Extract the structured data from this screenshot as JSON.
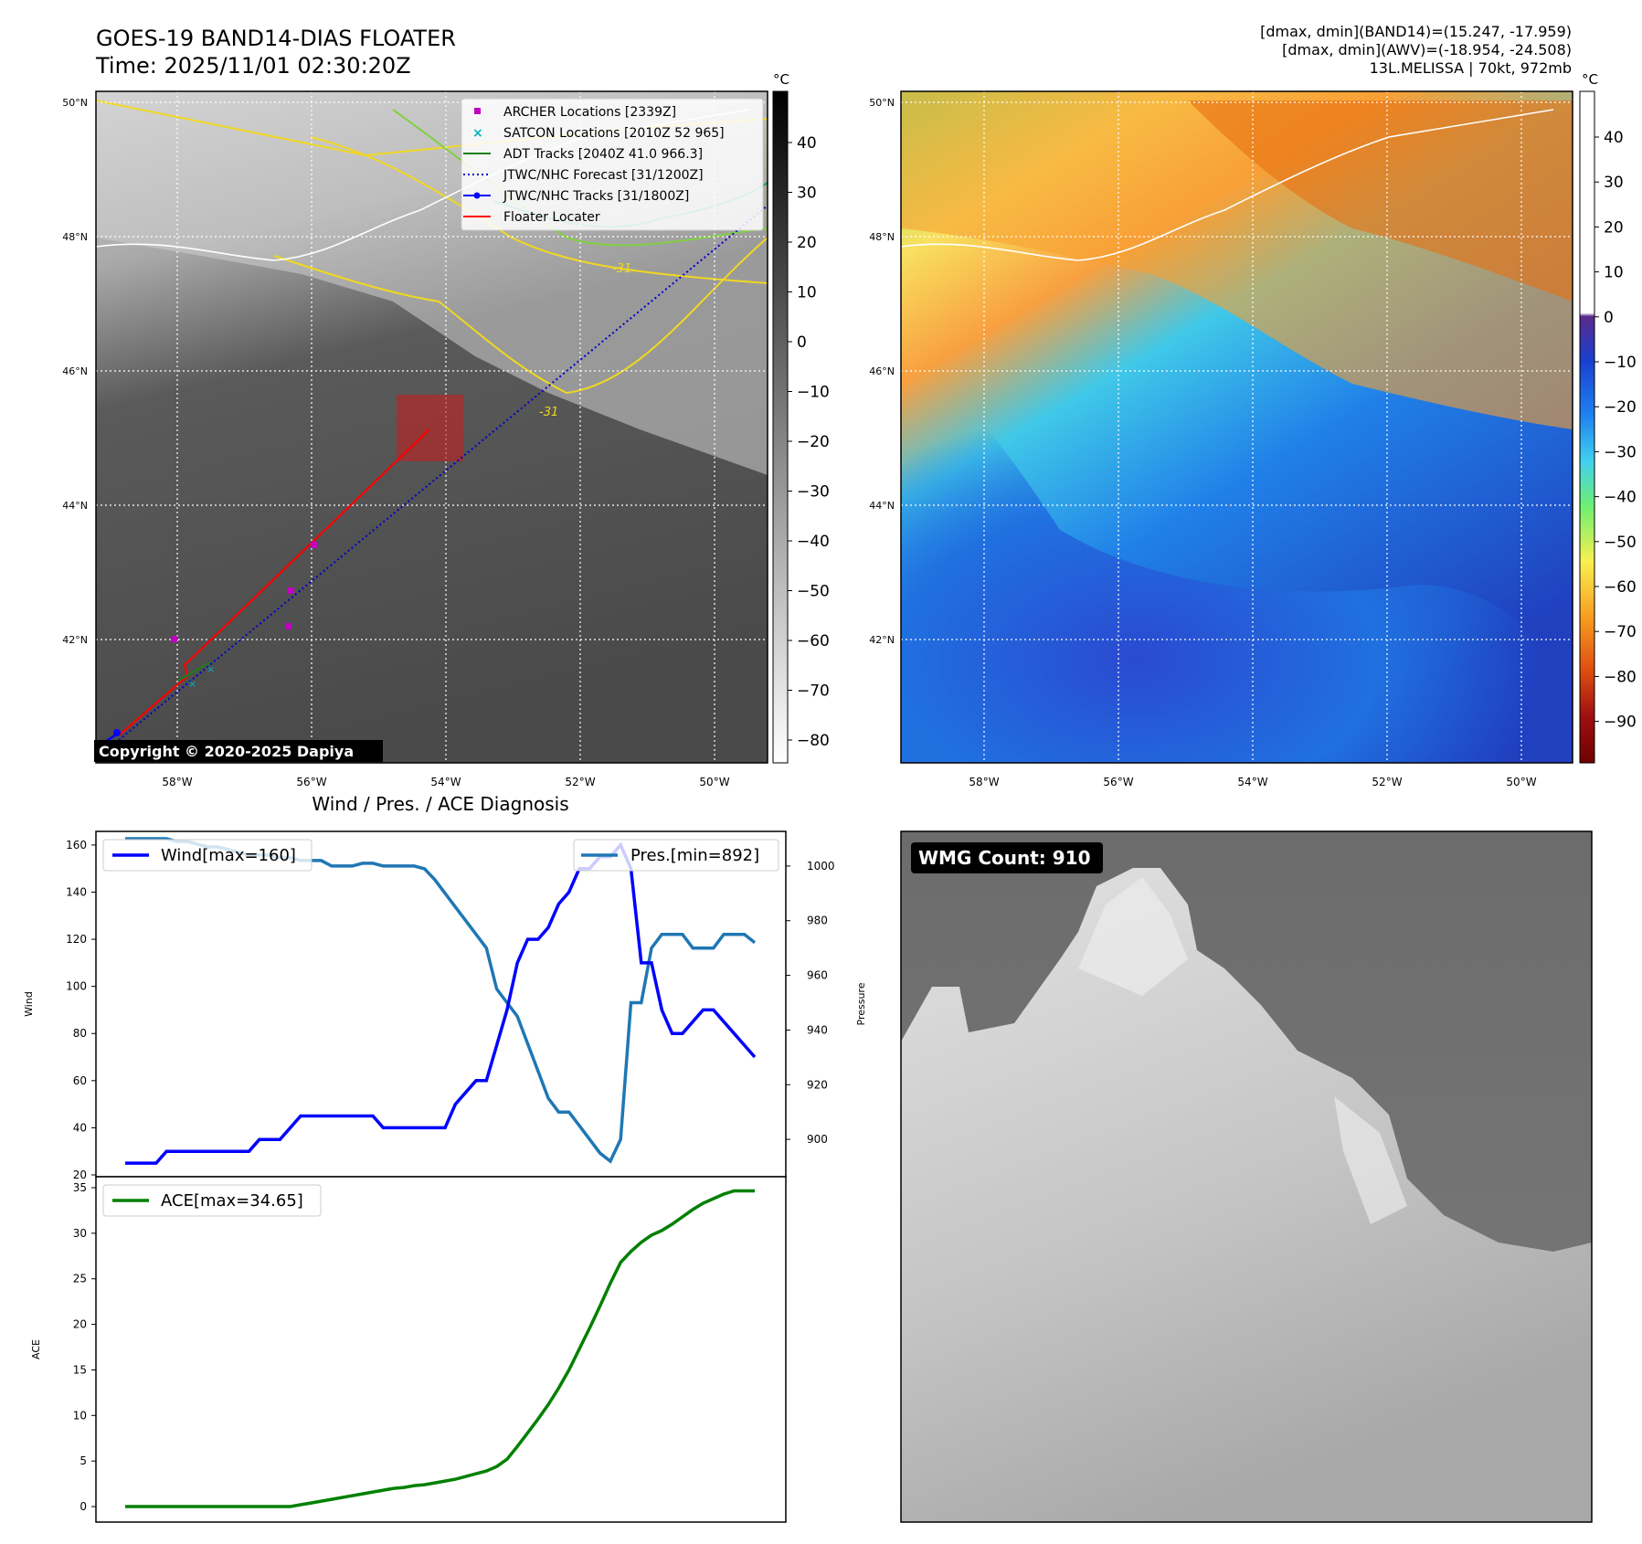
{
  "header": {
    "title": "GOES-19 BAND14-DIAS FLOATER",
    "time": "Time: 2025/11/01 02:30:20Z",
    "stats_line1": "[dmax, dmin](BAND14)=(15.247, -17.959)",
    "stats_line2": "[dmax, dmin](AWV)=(-18.954, -24.508)",
    "stats_line3": "13L.MELISSA | 70kt, 972mb"
  },
  "colors": {
    "archer": "#c000c0",
    "satcon": "#00b0c0",
    "adt": "#1a7f1a",
    "forecast": "#0000cc",
    "tracks": "#0000ff",
    "floater": "#ff0000",
    "wind": "#0000ff",
    "pressure": "#1f77b4",
    "ace": "#008000"
  },
  "maps": {
    "lat_labels": [
      "50°N",
      "48°N",
      "46°N",
      "44°N",
      "42°N"
    ],
    "lon_labels": [
      "58°W",
      "56°W",
      "54°W",
      "52°W",
      "50°W"
    ],
    "unit_label": "°C",
    "contour_label_a": "-31",
    "contour_label_b": "-31",
    "copyright": "Copyright © 2020-2025 Dapiya",
    "legend": [
      {
        "label": "ARCHER Locations [2339Z]",
        "icon": "square-marker"
      },
      {
        "label": "SATCON Locations [2010Z 52 965]",
        "icon": "x-marker"
      },
      {
        "label": "ADT Tracks [2040Z 41.0 966.3]",
        "icon": "solid-line"
      },
      {
        "label": "JTWC/NHC Forecast [31/1200Z]",
        "icon": "dotted-line"
      },
      {
        "label": "JTWC/NHC Tracks [31/1800Z]",
        "icon": "line-dot"
      },
      {
        "label": "Floater Locater",
        "icon": "red-line"
      }
    ],
    "ir_colorbar_ticks": [
      "40",
      "30",
      "20",
      "10",
      "0",
      "−10",
      "−20",
      "−30",
      "−40",
      "−50",
      "−60",
      "−70",
      "−80"
    ],
    "color_colorbar_ticks": [
      "40",
      "30",
      "20",
      "10",
      "0",
      "−10",
      "−20",
      "−30",
      "−40",
      "−50",
      "−60",
      "−70",
      "−80",
      "−90"
    ],
    "wmg_count": "WMG Count: 910"
  },
  "chart_data": [
    {
      "type": "line",
      "title": "Wind / Pres. / ACE Diagnosis",
      "ylabel": "Wind",
      "ylim": [
        20,
        165
      ],
      "yticks": [
        "160",
        "140",
        "120",
        "100",
        "80",
        "60",
        "40",
        "20"
      ],
      "y2label": "Pressure",
      "y2lim": [
        887,
        1012
      ],
      "y2ticks": [
        "1000",
        "980",
        "960",
        "940",
        "920",
        "900"
      ],
      "series": [
        {
          "name": "Wind[max=160]",
          "axis": "left",
          "values": [
            25,
            25,
            25,
            25,
            30,
            30,
            30,
            30,
            30,
            30,
            30,
            30,
            30,
            35,
            35,
            35,
            40,
            45,
            45,
            45,
            45,
            45,
            45,
            45,
            45,
            40,
            40,
            40,
            40,
            40,
            40,
            40,
            50,
            55,
            60,
            60,
            75,
            90,
            110,
            120,
            120,
            125,
            135,
            140,
            150,
            150,
            155,
            155,
            160,
            150,
            110,
            110,
            90,
            80,
            80,
            85,
            90,
            90,
            85,
            80,
            75,
            70
          ]
        },
        {
          "name": "Pres.[min=892]",
          "axis": "right",
          "values": [
            1010,
            1010,
            1010,
            1010,
            1010,
            1009,
            1009,
            1008,
            1007,
            1007,
            1006,
            1005,
            1004,
            1004,
            1004,
            1003,
            1003,
            1002,
            1002,
            1002,
            1000,
            1000,
            1000,
            1001,
            1001,
            1000,
            1000,
            1000,
            1000,
            999,
            995,
            990,
            985,
            980,
            975,
            970,
            955,
            950,
            945,
            935,
            925,
            915,
            910,
            910,
            905,
            900,
            895,
            892,
            900,
            950,
            950,
            970,
            975,
            975,
            975,
            970,
            970,
            970,
            975,
            975,
            975,
            972
          ]
        }
      ]
    },
    {
      "type": "line",
      "ylabel": "ACE",
      "ylim": [
        -1.5,
        35
      ],
      "yticks": [
        "35",
        "30",
        "25",
        "20",
        "15",
        "10",
        "5",
        "0"
      ],
      "series": [
        {
          "name": "ACE[max=34.65]",
          "values": [
            0,
            0,
            0,
            0,
            0,
            0,
            0,
            0,
            0,
            0,
            0,
            0,
            0,
            0,
            0,
            0,
            0,
            0.2,
            0.4,
            0.6,
            0.8,
            1.0,
            1.2,
            1.4,
            1.6,
            1.8,
            2.0,
            2.1,
            2.3,
            2.4,
            2.6,
            2.8,
            3.0,
            3.3,
            3.6,
            3.9,
            4.4,
            5.2,
            6.6,
            8.1,
            9.6,
            11.2,
            13.0,
            15.0,
            17.3,
            19.6,
            22.0,
            24.5,
            26.8,
            28.0,
            29.0,
            29.8,
            30.3,
            31.0,
            31.8,
            32.6,
            33.3,
            33.8,
            34.3,
            34.65,
            34.65,
            34.65
          ]
        }
      ]
    }
  ]
}
